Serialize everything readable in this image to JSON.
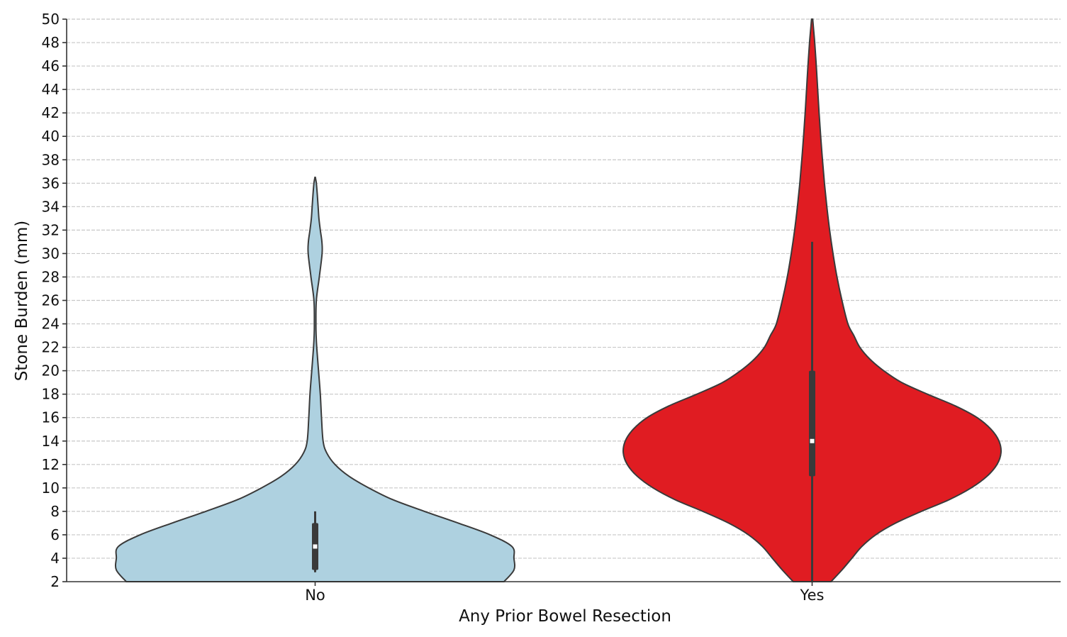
{
  "chart_data": {
    "type": "violin",
    "title": "",
    "xlabel": "Any Prior Bowel Resection",
    "ylabel": "Stone Burden (mm)",
    "ylim": [
      2,
      50
    ],
    "yticks": [
      2,
      4,
      6,
      8,
      10,
      12,
      14,
      16,
      18,
      20,
      22,
      24,
      26,
      28,
      30,
      32,
      34,
      36,
      38,
      40,
      42,
      44,
      46,
      48,
      50
    ],
    "grid": "horizontal",
    "categories": [
      "No",
      "Yes"
    ],
    "series": [
      {
        "name": "No",
        "color": "#aed1e0",
        "min": 2,
        "max": 36.5,
        "q1": 3,
        "median": 5,
        "q3": 7,
        "whisker_low": 2.8,
        "whisker_high": 8,
        "density": [
          [
            2,
            0.95
          ],
          [
            3,
            1.0
          ],
          [
            4,
            1.0
          ],
          [
            5,
            0.99
          ],
          [
            6,
            0.88
          ],
          [
            7,
            0.72
          ],
          [
            8,
            0.55
          ],
          [
            9,
            0.39
          ],
          [
            10,
            0.27
          ],
          [
            11,
            0.17
          ],
          [
            12,
            0.1
          ],
          [
            13,
            0.058
          ],
          [
            14,
            0.04
          ],
          [
            16,
            0.032
          ],
          [
            18,
            0.026
          ],
          [
            20,
            0.017
          ],
          [
            22,
            0.008
          ],
          [
            23,
            0.005
          ],
          [
            24,
            0.004
          ],
          [
            26,
            0.006
          ],
          [
            28,
            0.021
          ],
          [
            30,
            0.035
          ],
          [
            31,
            0.034
          ],
          [
            32,
            0.026
          ],
          [
            33,
            0.019
          ],
          [
            34,
            0.015
          ],
          [
            35,
            0.011
          ],
          [
            36,
            0.006
          ],
          [
            36.5,
            0.001
          ]
        ]
      },
      {
        "name": "Yes",
        "color": "#e01c22",
        "min": 2,
        "max": 50,
        "q1": 11,
        "median": 14,
        "q3": 20,
        "whisker_low": 2,
        "whisker_high": 31,
        "density": [
          [
            2,
            0.095
          ],
          [
            3,
            0.15
          ],
          [
            4,
            0.2
          ],
          [
            5,
            0.25
          ],
          [
            6,
            0.32
          ],
          [
            7,
            0.42
          ],
          [
            8,
            0.55
          ],
          [
            9,
            0.69
          ],
          [
            10,
            0.8
          ],
          [
            11,
            0.88
          ],
          [
            12,
            0.93
          ],
          [
            13,
            0.95
          ],
          [
            14,
            0.94
          ],
          [
            15,
            0.9
          ],
          [
            16,
            0.83
          ],
          [
            17,
            0.72
          ],
          [
            18,
            0.58
          ],
          [
            19,
            0.45
          ],
          [
            20,
            0.36
          ],
          [
            21,
            0.29
          ],
          [
            22,
            0.24
          ],
          [
            23,
            0.21
          ],
          [
            24,
            0.18
          ],
          [
            26,
            0.15
          ],
          [
            28,
            0.125
          ],
          [
            30,
            0.105
          ],
          [
            32,
            0.088
          ],
          [
            34,
            0.074
          ],
          [
            36,
            0.062
          ],
          [
            38,
            0.052
          ],
          [
            40,
            0.043
          ],
          [
            42,
            0.035
          ],
          [
            44,
            0.028
          ],
          [
            46,
            0.021
          ],
          [
            48,
            0.013
          ],
          [
            49,
            0.008
          ],
          [
            50,
            0.003
          ]
        ]
      }
    ]
  }
}
